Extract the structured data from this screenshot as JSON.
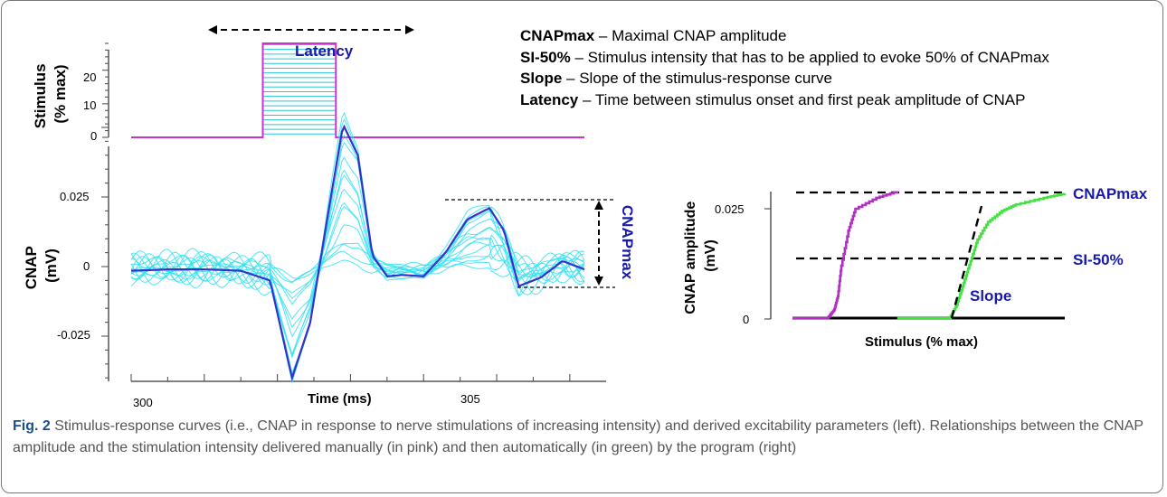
{
  "definitions": [
    {
      "term": "CNAPmax",
      "text": " – Maximal CNAP amplitude"
    },
    {
      "term": "SI-50%",
      "text": " – Stimulus intensity that has to be applied to evoke 50% of CNAPmax"
    },
    {
      "term": "Slope",
      "text": " – Slope of the stimulus-response curve"
    },
    {
      "term": "Latency",
      "text": " – Time between stimulus onset and  first peak amplitude of CNAP"
    }
  ],
  "caption": {
    "label": "Fig. 2",
    "text": " Stimulus-response curves (i.e., CNAP in response to nerve stimulations of increasing intensity) and derived excitability parameters (left). Relationships between the CNAP amplitude and the stimulation intensity delivered manually (in pink) and then automatically (in green) by the program (right)"
  },
  "chart_data": [
    {
      "type": "line",
      "panel": "stimulus",
      "ylabel": "Stimulus\n(% max)",
      "ytick_labels": [
        "0",
        "10",
        "20"
      ],
      "ylim": [
        0,
        28
      ],
      "x": [
        300,
        301.8,
        301.8,
        302.8,
        302.8,
        306.2
      ],
      "y": [
        0,
        0,
        28,
        28,
        0,
        0
      ],
      "color": "#cc33cc",
      "fill_color": "#22c8d8",
      "annotation": "Latency"
    },
    {
      "type": "line",
      "panel": "cnap",
      "xlabel": "Time (ms)",
      "ylabel": "CNAP\n(mV)",
      "xtick_labels": [
        "300",
        "305"
      ],
      "ytick_labels": [
        "0.025",
        "0",
        "-0.025"
      ],
      "xlim": [
        300,
        306.2
      ],
      "ylim": [
        -0.04,
        0.055
      ],
      "x": [
        300,
        300.5,
        301,
        301.5,
        301.9,
        302.2,
        302.45,
        302.7,
        302.9,
        303.1,
        303.3,
        303.5,
        303.7,
        304,
        304.3,
        304.6,
        304.9,
        305.1,
        305.3,
        305.6,
        305.9,
        306.2
      ],
      "series": [
        {
          "color": "#3333cc",
          "y": [
            -0.0015,
            -0.001,
            -0.001,
            -0.0015,
            -0.005,
            -0.04,
            -0.02,
            0.02,
            0.051,
            0.04,
            0.004,
            -0.0035,
            -0.003,
            -0.0035,
            0.005,
            0.017,
            0.021,
            0.013,
            -0.007,
            -0.004,
            0.002,
            -0.001
          ]
        }
      ],
      "trace_color": "#33e0f0",
      "annotation": "CNAPmax"
    },
    {
      "type": "line",
      "panel": "stimulus-response",
      "xlabel": "Stimulus (% max)",
      "ylabel": "CNAP amplitude\n(mV)",
      "ytick_labels": [
        "0.025",
        "0"
      ],
      "ylim": [
        0,
        0.03
      ],
      "series": [
        {
          "color": "#b030c0",
          "x": [
            0,
            10,
            12,
            13,
            14,
            16,
            18,
            24,
            30
          ],
          "y": [
            0,
            0,
            0.002,
            0.005,
            0.012,
            0.02,
            0.025,
            0.0275,
            0.029
          ]
        },
        {
          "color": "#44e044",
          "x": [
            30,
            45,
            47,
            49,
            51,
            53,
            56,
            60,
            64,
            72,
            78
          ],
          "y": [
            0,
            0,
            0.003,
            0.008,
            0.013,
            0.018,
            0.022,
            0.0245,
            0.026,
            0.0275,
            0.0285
          ]
        }
      ],
      "annotations": [
        "CNAPmax",
        "SI-50%",
        "Slope"
      ]
    }
  ]
}
